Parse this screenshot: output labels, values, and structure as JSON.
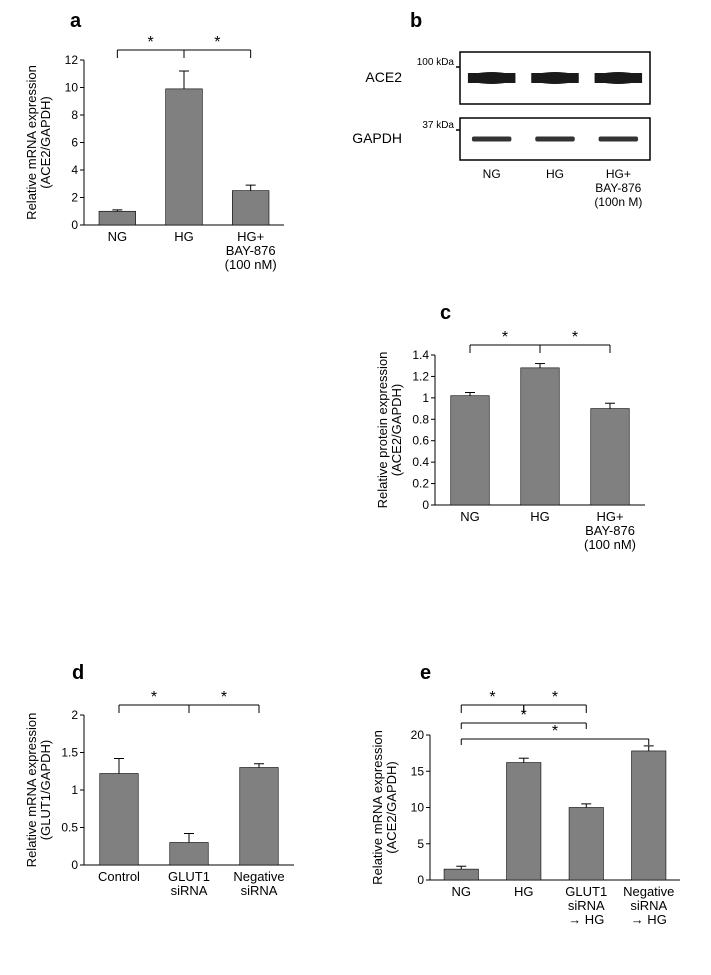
{
  "panel_labels": {
    "a": "a",
    "b": "b",
    "c": "c",
    "d": "d",
    "e": "e"
  },
  "colors": {
    "bar_fill": "#808080",
    "axis": "#000000",
    "text": "#000000",
    "bg": "#ffffff",
    "band": "#1a1a1a",
    "gapdh_band": "#333333"
  },
  "panel_a": {
    "type": "bar",
    "y_title_line1": "Relative mRNA expression",
    "y_title_line2": "(ACE2/GAPDH)",
    "categories": [
      "NG",
      "HG",
      "HG+\nBAY-876\n(100 nM)"
    ],
    "values": [
      1.0,
      9.9,
      2.5
    ],
    "errors": [
      0.1,
      1.3,
      0.4
    ],
    "ylim": [
      0,
      12
    ],
    "ytick_step": 2,
    "bar_width": 0.55,
    "sig_pairs": [
      [
        0,
        1
      ],
      [
        1,
        2
      ]
    ],
    "sig_symbol": "*"
  },
  "panel_b": {
    "ace2_label": "ACE2",
    "gapdh_label": "GAPDH",
    "kda_100": "100 kDa",
    "kda_37": "37 kDa",
    "lanes": [
      "NG",
      "HG",
      "HG+\nBAY-876\n(100n M)"
    ]
  },
  "panel_c": {
    "type": "bar",
    "y_title_line1": "Relative protein expression",
    "y_title_line2": "(ACE2/GAPDH)",
    "categories": [
      "NG",
      "HG",
      "HG+\nBAY-876\n(100 nM)"
    ],
    "values": [
      1.02,
      1.28,
      0.9
    ],
    "errors": [
      0.03,
      0.04,
      0.05
    ],
    "ylim": [
      0,
      1.4
    ],
    "ytick_step": 0.2,
    "bar_width": 0.55,
    "sig_pairs": [
      [
        0,
        1
      ],
      [
        1,
        2
      ]
    ],
    "sig_symbol": "*"
  },
  "panel_d": {
    "type": "bar",
    "y_title_line1": "Relative mRNA expression",
    "y_title_line2": "(GLUT1/GAPDH)",
    "categories": [
      "Control",
      "GLUT1\nsiRNA",
      "Negative\nsiRNA"
    ],
    "values": [
      1.22,
      0.3,
      1.3
    ],
    "errors": [
      0.2,
      0.12,
      0.05
    ],
    "ylim": [
      0,
      2
    ],
    "ytick_step": 0.5,
    "bar_width": 0.55,
    "sig_pairs": [
      [
        0,
        1
      ],
      [
        1,
        2
      ]
    ],
    "sig_symbol": "*"
  },
  "panel_e": {
    "type": "bar",
    "y_title_line1": "Relative mRNA expression",
    "y_title_line2": "(ACE2/GAPDH)",
    "categories": [
      "NG",
      "HG",
      "GLUT1\nsiRNA\n→ HG",
      "Negative\nsiRNA\n→ HG"
    ],
    "values": [
      1.5,
      16.2,
      10.0,
      17.8
    ],
    "errors": [
      0.4,
      0.6,
      0.5,
      0.7
    ],
    "ylim": [
      0,
      20
    ],
    "ytick_step": 5,
    "bar_width": 0.55,
    "sig_pairs_top": [
      [
        0,
        1
      ],
      [
        1,
        2
      ]
    ],
    "sig_pairs_below": [
      [
        0,
        2
      ],
      [
        0,
        3
      ]
    ],
    "sig_symbol": "*"
  }
}
